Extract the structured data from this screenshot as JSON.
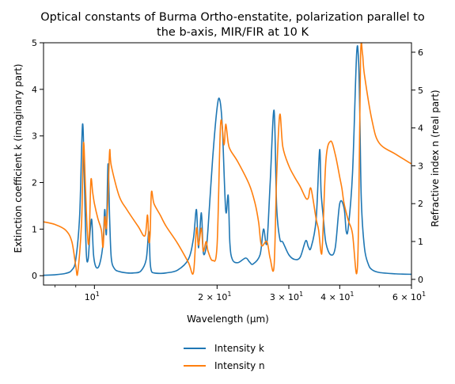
{
  "chart_data": {
    "type": "line",
    "title_line1": "Optical constants of Burma Ortho-enstatite, polarization parallel to",
    "title_line2": "the b-axis, MIR/FIR at 10 K",
    "xlabel": "Wavelength (μm)",
    "ylabel_left": "Extinction coefficient k (imaginary part)",
    "ylabel_right": "Refractive index n (real part)",
    "xscale": "log",
    "xlim": [
      7.5,
      60
    ],
    "ylim_left": [
      -0.2,
      5
    ],
    "ylim_right": [
      -0.15,
      6.25
    ],
    "x_ticks": [
      {
        "value": 10,
        "base": "10",
        "exp": "1"
      },
      {
        "value": 20,
        "base": "2 × 10",
        "exp": "1"
      },
      {
        "value": 30,
        "base": "3 × 10",
        "exp": "1"
      },
      {
        "value": 40,
        "base": "4 × 10",
        "exp": "1"
      },
      {
        "value": 60,
        "base": "6 × 10",
        "exp": "1"
      }
    ],
    "y_ticks_left": [
      "0",
      "1",
      "2",
      "3",
      "4",
      "5"
    ],
    "y_ticks_right": [
      "0",
      "1",
      "2",
      "3",
      "4",
      "5",
      "6"
    ],
    "grid": false,
    "legend_position": "bottom-center",
    "series": [
      {
        "name": "Intensity k",
        "axis": "left",
        "color": "#1f77b4",
        "x": [
          7.5,
          8.0,
          8.5,
          8.8,
          9.0,
          9.2,
          9.35,
          9.45,
          9.55,
          9.65,
          9.75,
          9.85,
          9.95,
          10.1,
          10.3,
          10.5,
          10.6,
          10.7,
          10.8,
          10.9,
          11.0,
          11.2,
          11.5,
          12.0,
          12.5,
          13.0,
          13.4,
          13.6,
          13.7,
          13.8,
          14.0,
          14.5,
          15.0,
          16.0,
          17.0,
          17.5,
          17.8,
          18.0,
          18.3,
          18.5,
          18.8,
          19.0,
          19.5,
          20.0,
          20.3,
          20.6,
          21.0,
          21.3,
          21.5,
          21.8,
          22.5,
          23.5,
          24.0,
          24.5,
          25.5,
          26.0,
          26.5,
          27.0,
          27.6,
          28.0,
          28.5,
          29.0,
          30.0,
          31.0,
          32.0,
          33.0,
          33.5,
          34.0,
          35.0,
          35.7,
          36.0,
          36.5,
          37.0,
          38.0,
          39.0,
          40.0,
          41.0,
          41.5,
          42.0,
          43.0,
          44.0,
          44.5,
          44.8,
          45.2,
          46.0,
          47.0,
          48.0,
          50.0,
          55.0,
          60.0
        ],
        "y": [
          0.01,
          0.02,
          0.05,
          0.12,
          0.35,
          1.3,
          3.25,
          2.0,
          0.5,
          0.35,
          0.9,
          1.2,
          0.45,
          0.18,
          0.25,
          0.7,
          1.42,
          0.9,
          2.4,
          1.2,
          0.38,
          0.15,
          0.09,
          0.06,
          0.06,
          0.1,
          0.35,
          0.95,
          0.3,
          0.1,
          0.06,
          0.05,
          0.06,
          0.12,
          0.35,
          0.8,
          1.42,
          0.6,
          1.35,
          0.5,
          0.6,
          1.0,
          2.5,
          3.6,
          3.78,
          3.2,
          1.4,
          1.72,
          0.7,
          0.35,
          0.28,
          0.38,
          0.3,
          0.25,
          0.45,
          1.0,
          0.7,
          2.0,
          3.55,
          1.5,
          0.8,
          0.72,
          0.45,
          0.35,
          0.4,
          0.75,
          0.62,
          0.6,
          1.2,
          2.7,
          1.8,
          1.2,
          0.7,
          0.45,
          0.6,
          1.55,
          1.45,
          0.95,
          1.05,
          2.2,
          4.75,
          4.6,
          3.5,
          1.6,
          0.6,
          0.25,
          0.13,
          0.07,
          0.04,
          0.03
        ]
      },
      {
        "name": "Intensity n",
        "axis": "right",
        "color": "#ff7f0e",
        "x": [
          7.5,
          8.0,
          8.5,
          8.8,
          9.0,
          9.1,
          9.3,
          9.4,
          9.5,
          9.6,
          9.7,
          9.8,
          9.9,
          10.0,
          10.2,
          10.4,
          10.5,
          10.6,
          10.7,
          10.8,
          10.9,
          11.0,
          11.5,
          12.0,
          12.8,
          13.3,
          13.5,
          13.6,
          13.7,
          13.8,
          14.0,
          14.5,
          15.0,
          16.0,
          17.0,
          17.5,
          17.8,
          18.0,
          18.3,
          18.5,
          18.8,
          19.0,
          19.5,
          20.0,
          20.4,
          20.8,
          21.0,
          21.3,
          21.6,
          22.5,
          24.0,
          24.8,
          25.3,
          25.7,
          26.5,
          27.0,
          27.6,
          28.0,
          28.5,
          29.0,
          30.0,
          31.0,
          32.0,
          33.0,
          33.5,
          34.0,
          35.0,
          35.5,
          36.0,
          36.3,
          37.0,
          38.0,
          39.0,
          40.0,
          40.5,
          41.0,
          42.0,
          43.0,
          44.0,
          44.5,
          45.0,
          45.5,
          46.0,
          48.0,
          50.0,
          55.0,
          60.0
        ],
        "y": [
          1.52,
          1.45,
          1.3,
          1.0,
          0.35,
          0.18,
          1.5,
          3.6,
          2.5,
          1.3,
          1.0,
          2.6,
          2.3,
          2.0,
          1.6,
          1.3,
          0.85,
          1.65,
          1.35,
          2.2,
          3.4,
          3.0,
          2.2,
          1.85,
          1.4,
          1.15,
          1.7,
          1.0,
          1.2,
          2.3,
          2.0,
          1.7,
          1.4,
          0.95,
          0.45,
          0.18,
          1.35,
          0.9,
          1.35,
          0.75,
          1.0,
          0.75,
          0.5,
          0.9,
          4.1,
          3.55,
          4.1,
          3.6,
          3.4,
          3.1,
          2.5,
          2.0,
          1.5,
          0.9,
          1.0,
          0.55,
          0.35,
          2.7,
          4.35,
          3.5,
          3.0,
          2.7,
          2.45,
          2.15,
          2.15,
          2.4,
          1.6,
          1.3,
          0.7,
          1.0,
          3.15,
          3.65,
          3.3,
          2.7,
          2.4,
          2.0,
          1.55,
          1.2,
          0.15,
          1.5,
          5.9,
          5.95,
          5.4,
          4.2,
          3.6,
          3.3,
          3.05
        ]
      }
    ]
  }
}
